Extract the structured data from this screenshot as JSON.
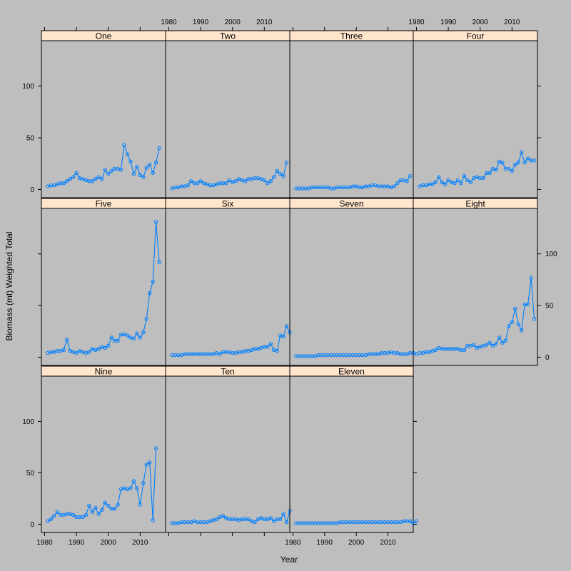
{
  "chart_data": {
    "type": "line",
    "layout": "lattice panels, 4 columns x 3 rows, panels fill left-to-right, top-to-bottom",
    "xlabel": "Year",
    "ylabel": "Biomass (mt) Weighted Total",
    "xlim": [
      1979,
      2018
    ],
    "ylim": [
      -8,
      144
    ],
    "x_ticks": [
      1980,
      1990,
      2000,
      2010
    ],
    "y_ticks": [
      0,
      50,
      100
    ],
    "x_tick_labels": [
      "1980",
      "1990",
      "2000",
      "2010"
    ],
    "y_tick_labels": [
      "0",
      "50",
      "100"
    ],
    "grid": false,
    "line_color": "#0080ff",
    "background_color": "#bebebe",
    "strip_color": "#ffe5cc",
    "x_start": 1981,
    "panels": [
      {
        "name": "One",
        "values": [
          3,
          4,
          4,
          5,
          6,
          6,
          8,
          10,
          12,
          16,
          11,
          10,
          9,
          8,
          8,
          10,
          12,
          10,
          19,
          15,
          18,
          20,
          20,
          19,
          43,
          34,
          27,
          15,
          22,
          14,
          12,
          21,
          24,
          16,
          26,
          40
        ]
      },
      {
        "name": "Two",
        "values": [
          1,
          2,
          2,
          3,
          3,
          4,
          8,
          6,
          6,
          8,
          6,
          5,
          4,
          4,
          5,
          6,
          6,
          6,
          9,
          7,
          8,
          10,
          9,
          8,
          10,
          10,
          11,
          11,
          10,
          9,
          6,
          8,
          12,
          18,
          15,
          13,
          26
        ]
      },
      {
        "name": "Three",
        "values": [
          1,
          1,
          1,
          1,
          1,
          2,
          2,
          2,
          2,
          2,
          2,
          1,
          1,
          2,
          2,
          2,
          2,
          2,
          3,
          3,
          2,
          2,
          3,
          3,
          4,
          4,
          3,
          3,
          3,
          3,
          2,
          3,
          6,
          9,
          9,
          8,
          13
        ]
      },
      {
        "name": "Four",
        "values": [
          3,
          4,
          4,
          5,
          5,
          7,
          12,
          7,
          5,
          9,
          7,
          6,
          9,
          6,
          13,
          9,
          7,
          11,
          12,
          11,
          11,
          16,
          16,
          20,
          19,
          27,
          26,
          20,
          20,
          18,
          24,
          26,
          36,
          26,
          30,
          28,
          28
        ]
      },
      {
        "name": "Five",
        "values": [
          4,
          5,
          5,
          6,
          6,
          7,
          17,
          6,
          5,
          4,
          6,
          5,
          4,
          5,
          8,
          7,
          8,
          10,
          9,
          11,
          19,
          16,
          16,
          22,
          22,
          21,
          19,
          18,
          23,
          19,
          24,
          37,
          62,
          73,
          131,
          92
        ]
      },
      {
        "name": "Six",
        "values": [
          2,
          2,
          2,
          2,
          3,
          3,
          3,
          3,
          3,
          3,
          3,
          3,
          3,
          3,
          4,
          3,
          5,
          5,
          5,
          4,
          4,
          5,
          5,
          6,
          6,
          7,
          8,
          8,
          9,
          10,
          10,
          13,
          7,
          6,
          21,
          20,
          30,
          24
        ]
      },
      {
        "name": "Seven",
        "values": [
          1,
          1,
          1,
          1,
          1,
          1,
          1,
          2,
          2,
          2,
          2,
          2,
          2,
          2,
          2,
          2,
          2,
          2,
          2,
          2,
          2,
          2,
          2,
          3,
          3,
          3,
          3,
          4,
          4,
          4,
          5,
          4,
          4,
          3,
          3,
          3,
          4,
          4,
          3
        ]
      },
      {
        "name": "Eight",
        "values": [
          4,
          4,
          5,
          5,
          6,
          7,
          9,
          8,
          8,
          8,
          8,
          8,
          8,
          7,
          7,
          11,
          11,
          12,
          9,
          10,
          11,
          12,
          14,
          11,
          13,
          19,
          14,
          16,
          30,
          34,
          47,
          32,
          26,
          51,
          51,
          77,
          37
        ]
      },
      {
        "name": "Nine",
        "values": [
          3,
          5,
          8,
          12,
          9,
          9,
          10,
          10,
          9,
          7,
          7,
          7,
          9,
          18,
          12,
          16,
          10,
          14,
          21,
          18,
          15,
          15,
          19,
          34,
          35,
          34,
          35,
          42,
          35,
          19,
          40,
          58,
          60,
          4,
          74
        ]
      },
      {
        "name": "Ten",
        "values": [
          1,
          1,
          1,
          2,
          2,
          2,
          2,
          3,
          2,
          2,
          2,
          2,
          3,
          4,
          5,
          7,
          8,
          6,
          5,
          5,
          5,
          4,
          5,
          5,
          5,
          3,
          2,
          5,
          6,
          5,
          5,
          6,
          3,
          5,
          5,
          10,
          2,
          13
        ]
      },
      {
        "name": "Eleven",
        "values": [
          1,
          1,
          1,
          1,
          1,
          1,
          1,
          1,
          1,
          1,
          1,
          1,
          1,
          1,
          2,
          2,
          2,
          2,
          2,
          2,
          2,
          2,
          2,
          2,
          2,
          2,
          2,
          2,
          2,
          2,
          2,
          2,
          2,
          2,
          3,
          3,
          3,
          1,
          3
        ]
      }
    ]
  }
}
